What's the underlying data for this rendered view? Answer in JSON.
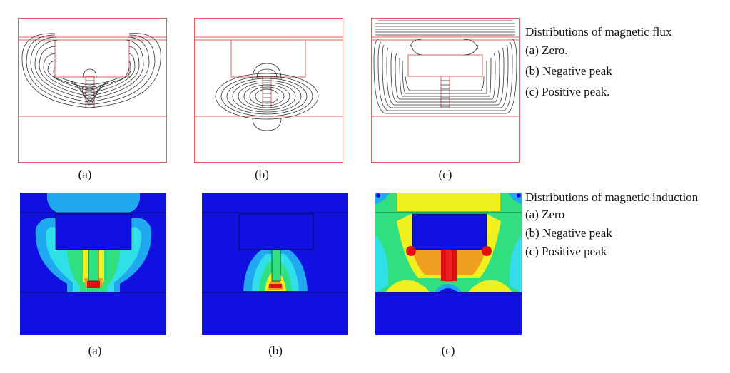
{
  "top_row": {
    "captions": [
      "(a)",
      "(b)",
      "(c)"
    ],
    "legend": {
      "title": "Distributions of magnetic flux",
      "items": [
        "(a) Zero.",
        "(b) Negative peak",
        "(c) Positive peak."
      ]
    }
  },
  "bottom_row": {
    "captions": [
      "(a)",
      "(b)",
      "(c)"
    ],
    "legend": {
      "title": "Distributions of magnetic induction",
      "items": [
        "(a) Zero",
        "(b) Negative peak",
        "(c) Positive peak"
      ]
    }
  },
  "colors": {
    "outline": "#e06060",
    "flux_line": "#333333",
    "field_blue": "#1010e0",
    "field_lightblue": "#20a8f0",
    "field_cyan": "#30e0e8",
    "field_green": "#30e080",
    "field_yellow": "#f0f020",
    "field_orange": "#f0a020",
    "field_red": "#e01010"
  }
}
